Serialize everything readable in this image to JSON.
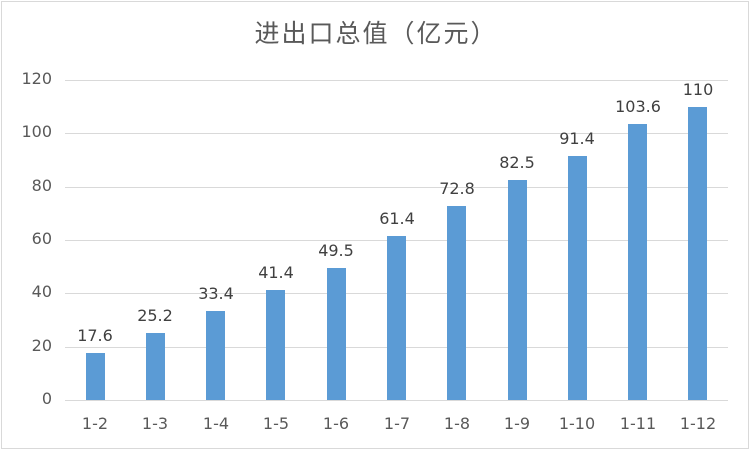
{
  "chart_data": {
    "type": "bar",
    "title": "进出口总值（亿元）",
    "xlabel": "",
    "ylabel": "",
    "ylim": [
      0,
      120
    ],
    "yticks": [
      0,
      20,
      40,
      60,
      80,
      100,
      120
    ],
    "grid": true,
    "legend": null,
    "bar_color": "#5b9bd5",
    "categories": [
      "1-2",
      "1-3",
      "1-4",
      "1-5",
      "1-6",
      "1-7",
      "1-8",
      "1-9",
      "1-10",
      "1-11",
      "1-12"
    ],
    "values": [
      17.6,
      25.2,
      33.4,
      41.4,
      49.5,
      61.4,
      72.8,
      82.5,
      91.4,
      103.6,
      110
    ],
    "data_labels": [
      "17.6",
      "25.2",
      "33.4",
      "41.4",
      "49.5",
      "61.4",
      "72.8",
      "82.5",
      "91.4",
      "103.6",
      "110"
    ]
  }
}
